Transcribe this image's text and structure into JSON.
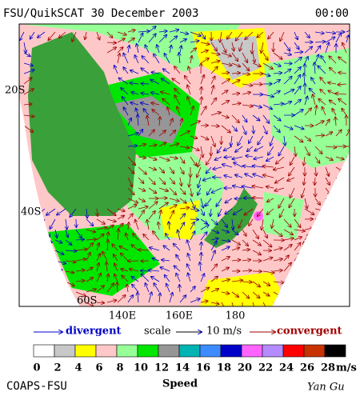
{
  "header": {
    "title": "FSU/QuikSCAT 30 December 2003",
    "time": "00:00"
  },
  "map": {
    "lat_labels": [
      "20S",
      "40S",
      "60S"
    ],
    "lon_labels": [
      "140E",
      "160E",
      "180"
    ]
  },
  "legend": {
    "divergent": "divergent",
    "scale": "scale",
    "scale_value": "10 m/s",
    "convergent": "convergent"
  },
  "colorbar": {
    "ticks": [
      0,
      2,
      4,
      6,
      8,
      10,
      12,
      14,
      16,
      18,
      20,
      22,
      24,
      26,
      28
    ],
    "unit": "m/s",
    "colors": [
      "#ffffff",
      "#c8c8c8",
      "#ffff00",
      "#ffc8c8",
      "#96ff96",
      "#00e600",
      "#969696",
      "#00b4b4",
      "#3c8cff",
      "#0000c8",
      "#ff64ff",
      "#b48cff",
      "#ff0000",
      "#c83200",
      "#000000"
    ],
    "label": "Speed"
  },
  "footer": {
    "left": "COAPS-FSU",
    "right": "Yan Gu"
  }
}
